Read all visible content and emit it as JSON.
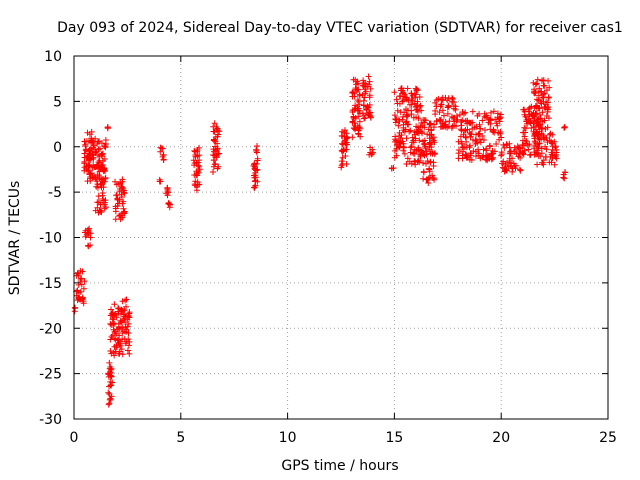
{
  "chart_data": {
    "type": "scatter",
    "title": "Day 093 of 2024, Sidereal Day-to-day VTEC variation (SDTVAR) for receiver cas1",
    "xlabel": "GPS time / hours",
    "ylabel": "SDTVAR / TECUs",
    "xlim": [
      0,
      25
    ],
    "ylim": [
      -30,
      10
    ],
    "xticks": [
      0,
      5,
      10,
      15,
      20,
      25
    ],
    "yticks": [
      -30,
      -25,
      -20,
      -15,
      -10,
      -5,
      0,
      5,
      10
    ],
    "xtick_labels": [
      "0",
      "5",
      "10",
      "15",
      "20",
      "25"
    ],
    "ytick_labels": [
      "-30",
      "-25",
      "-20",
      "-15",
      "-10",
      "-5",
      "0",
      "5",
      "10"
    ],
    "grid": true,
    "marker": "+",
    "color": "#ff0000",
    "series": [
      {
        "name": "SDTVAR",
        "clusters": [
          {
            "x": [
              0.0,
              0.1
            ],
            "y": [
              -18.2,
              -17.7
            ]
          },
          {
            "x": [
              0.1,
              0.5
            ],
            "y": [
              -17.5,
              -13.5
            ]
          },
          {
            "x": [
              0.5,
              0.8
            ],
            "y": [
              -11.0,
              -9.0
            ]
          },
          {
            "x": [
              0.45,
              0.9
            ],
            "y": [
              -3.0,
              2.0
            ]
          },
          {
            "x": [
              0.6,
              1.5
            ],
            "y": [
              -4.0,
              1.0
            ]
          },
          {
            "x": [
              1.0,
              1.5
            ],
            "y": [
              -7.3,
              -2.0
            ]
          },
          {
            "x": [
              1.5,
              1.6
            ],
            "y": [
              2.0,
              2.2
            ]
          },
          {
            "x": [
              1.6,
              1.8
            ],
            "y": [
              -28.5,
              -23.5
            ]
          },
          {
            "x": [
              1.7,
              2.1
            ],
            "y": [
              -23.0,
              -17.0
            ]
          },
          {
            "x": [
              1.9,
              2.4
            ],
            "y": [
              -8.0,
              -3.5
            ]
          },
          {
            "x": [
              2.1,
              2.6
            ],
            "y": [
              -23.2,
              -16.8
            ]
          },
          {
            "x": [
              4.0,
              4.1
            ],
            "y": [
              -4.0,
              -3.5
            ]
          },
          {
            "x": [
              4.0,
              4.2
            ],
            "y": [
              -1.5,
              0.0
            ]
          },
          {
            "x": [
              4.3,
              4.5
            ],
            "y": [
              -6.8,
              -4.5
            ]
          },
          {
            "x": [
              5.6,
              5.9
            ],
            "y": [
              -5.0,
              0.0
            ]
          },
          {
            "x": [
              6.5,
              6.8
            ],
            "y": [
              -3.0,
              2.7
            ]
          },
          {
            "x": [
              8.4,
              8.6
            ],
            "y": [
              -4.8,
              0.2
            ]
          },
          {
            "x": [
              12.5,
              12.8
            ],
            "y": [
              -2.5,
              2.2
            ]
          },
          {
            "x": [
              13.0,
              13.4
            ],
            "y": [
              1.0,
              7.5
            ]
          },
          {
            "x": [
              13.5,
              13.9
            ],
            "y": [
              3.0,
              8.0
            ]
          },
          {
            "x": [
              13.8,
              14.0
            ],
            "y": [
              -1.0,
              0.0
            ]
          },
          {
            "x": [
              14.8,
              15.0
            ],
            "y": [
              -2.5,
              -2.3
            ]
          },
          {
            "x": [
              15.0,
              16.3
            ],
            "y": [
              -2.0,
              6.5
            ]
          },
          {
            "x": [
              16.3,
              16.9
            ],
            "y": [
              -4.0,
              3.0
            ]
          },
          {
            "x": [
              16.9,
              18.0
            ],
            "y": [
              2.0,
              5.5
            ]
          },
          {
            "x": [
              18.0,
              20.0
            ],
            "y": [
              -1.5,
              4.0
            ]
          },
          {
            "x": [
              20.0,
              21.0
            ],
            "y": [
              -2.8,
              0.5
            ]
          },
          {
            "x": [
              21.0,
              21.8
            ],
            "y": [
              -1.0,
              4.5
            ]
          },
          {
            "x": [
              21.5,
              22.3
            ],
            "y": [
              -2.0,
              7.5
            ]
          },
          {
            "x": [
              22.3,
              22.6
            ],
            "y": [
              -2.0,
              1.5
            ]
          },
          {
            "x": [
              22.8,
              23.0
            ],
            "y": [
              -3.5,
              -2.8
            ]
          },
          {
            "x": [
              22.9,
              23.0
            ],
            "y": [
              2.0,
              2.2
            ]
          }
        ]
      }
    ]
  }
}
